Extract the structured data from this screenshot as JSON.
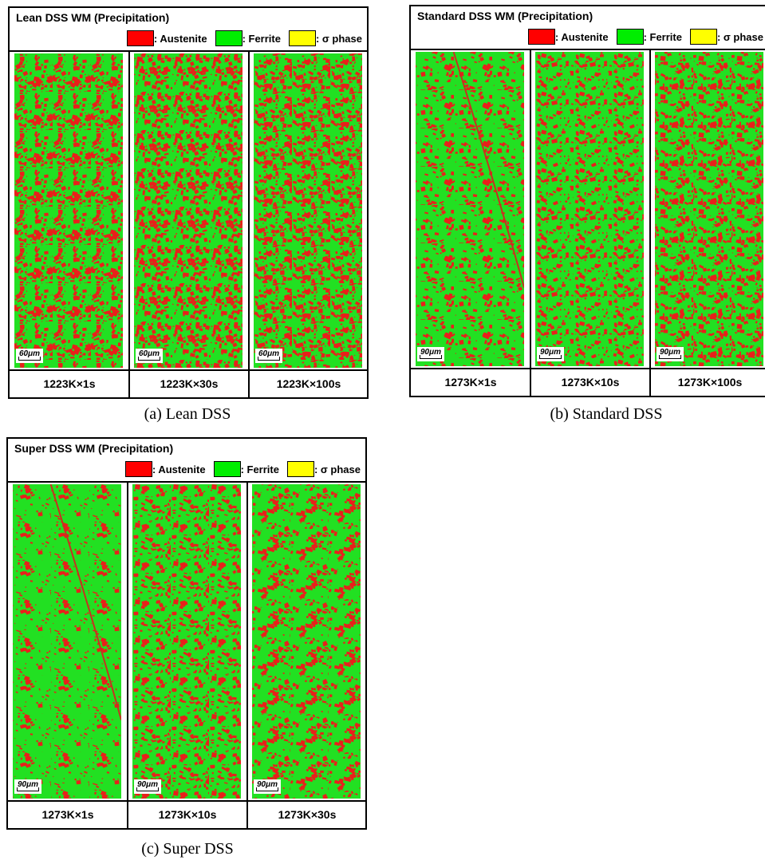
{
  "panels": [
    {
      "title": "Lean DSS WM (Precipitation)",
      "legend": [
        ": Austenite",
        ": Ferrite",
        ": σ phase"
      ],
      "images": [
        {
          "scale": "60μm",
          "condition": "1223K×1s"
        },
        {
          "scale": "60μm",
          "condition": "1223K×30s"
        },
        {
          "scale": "60μm",
          "condition": "1223K×100s"
        }
      ],
      "caption": "(a) Lean DSS"
    },
    {
      "title": "Standard DSS WM (Precipitation)",
      "legend": [
        ": Austenite",
        ": Ferrite",
        ": σ phase"
      ],
      "images": [
        {
          "scale": "90μm",
          "condition": "1273K×1s"
        },
        {
          "scale": "90μm",
          "condition": "1273K×10s"
        },
        {
          "scale": "90μm",
          "condition": "1273K×100s"
        }
      ],
      "caption": "(b) Standard DSS"
    },
    {
      "title": "Super DSS WM (Precipitation)",
      "legend": [
        ": Austenite",
        ": Ferrite",
        ": σ phase"
      ],
      "images": [
        {
          "scale": "90μm",
          "condition": "1273K×1s"
        },
        {
          "scale": "90μm",
          "condition": "1273K×10s"
        },
        {
          "scale": "90μm",
          "condition": "1273K×30s"
        }
      ],
      "caption": "(c) Super DSS"
    }
  ]
}
